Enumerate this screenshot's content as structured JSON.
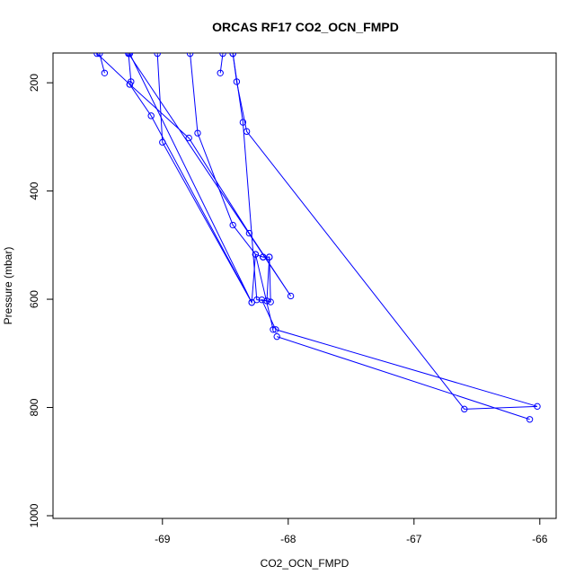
{
  "chart_data": {
    "type": "line",
    "title": "ORCAS RF17 CO2_OCN_FMPD",
    "xlabel": "CO2_OCN_FMPD",
    "ylabel": "Pressure (mbar)",
    "xlim": [
      -69.87,
      -65.87
    ],
    "ylim": [
      1005,
      145
    ],
    "y_reversed": true,
    "x_ticks": [
      -69,
      -68,
      -67,
      -66
    ],
    "y_ticks": [
      200,
      400,
      600,
      800,
      1000
    ],
    "grid": false,
    "legend": "none",
    "color": "#0000ff",
    "marker": "open-circle",
    "series": [
      {
        "points": [
          [
            -68.78,
            146
          ],
          [
            -68.72,
            293
          ],
          [
            -68.44,
            463
          ],
          [
            -68.26,
            517
          ],
          [
            -68.2,
            522
          ],
          [
            -68.15,
            522
          ],
          [
            -68.14,
            605
          ],
          [
            -68.21,
            601
          ],
          [
            -68.1,
            656
          ],
          [
            -66.02,
            798
          ],
          [
            -66.6,
            803
          ],
          [
            -68.33,
            290
          ],
          [
            -68.41,
            198
          ],
          [
            -68.44,
            146
          ]
        ]
      },
      {
        "points": [
          [
            -68.54,
            182
          ],
          [
            -68.52,
            146
          ]
        ]
      },
      {
        "points": [
          [
            -68.09,
            669
          ],
          [
            -66.08,
            822
          ]
        ]
      },
      {
        "points": [
          [
            -68.44,
            146
          ],
          [
            -68.36,
            273
          ],
          [
            -68.25,
            601
          ],
          [
            -68.17,
            603
          ],
          [
            -68.15,
            522
          ],
          [
            -68.2,
            522
          ]
        ]
      },
      {
        "points": [
          [
            -69.27,
            146
          ],
          [
            -69.25,
            198
          ],
          [
            -69.26,
            203
          ],
          [
            -68.79,
            302
          ],
          [
            -68.31,
            478
          ],
          [
            -67.98,
            594
          ],
          [
            -69.27,
            146
          ]
        ]
      },
      {
        "points": [
          [
            -69.46,
            182
          ],
          [
            -69.5,
            146
          ]
        ]
      },
      {
        "points": [
          [
            -69.52,
            146
          ],
          [
            -69.26,
            203
          ],
          [
            -69.09,
            261
          ],
          [
            -68.29,
            606
          ],
          [
            -69.26,
            146
          ]
        ]
      },
      {
        "points": [
          [
            -69.04,
            146
          ],
          [
            -69.0,
            310
          ],
          [
            -68.29,
            606
          ],
          [
            -68.26,
            517
          ],
          [
            -68.12,
            656
          ]
        ]
      }
    ]
  }
}
